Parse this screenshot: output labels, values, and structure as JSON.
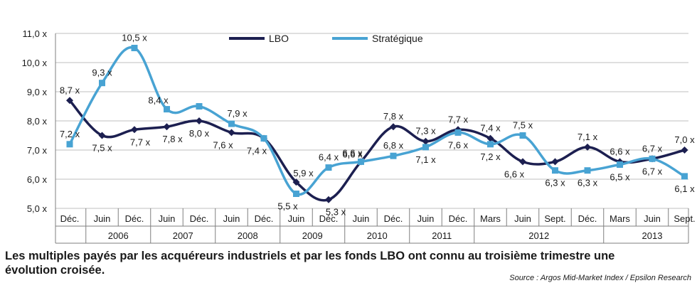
{
  "chart_data": {
    "type": "line",
    "x": [
      "Déc.",
      "Juin",
      "Déc.",
      "Juin",
      "Déc.",
      "Juin",
      "Déc.",
      "Juin",
      "Déc.",
      "Juin",
      "Déc.",
      "Juin",
      "Déc.",
      "Mars",
      "Juin",
      "Sept.",
      "Déc.",
      "Mars",
      "Juin",
      "Sept."
    ],
    "years": [
      {
        "label": "2006",
        "from": 1,
        "to": 2
      },
      {
        "label": "2007",
        "from": 3,
        "to": 4
      },
      {
        "label": "2008",
        "from": 5,
        "to": 6
      },
      {
        "label": "2009",
        "from": 7,
        "to": 8
      },
      {
        "label": "2010",
        "from": 9,
        "to": 10
      },
      {
        "label": "2011",
        "from": 11,
        "to": 12
      },
      {
        "label": "2012",
        "from": 13,
        "to": 16
      },
      {
        "label": "2013",
        "from": 17,
        "to": 19
      }
    ],
    "series": [
      {
        "name": "LBO",
        "color": "#1c1f50",
        "values": [
          8.7,
          7.5,
          7.7,
          7.8,
          8.0,
          7.6,
          7.4,
          5.9,
          5.3,
          6.6,
          7.8,
          7.3,
          7.7,
          7.4,
          6.6,
          6.6,
          7.1,
          6.6,
          6.7,
          7.0
        ],
        "labels": [
          "8,7 x",
          "7,5 x",
          "7,7 x",
          "7,8 x",
          "8,0 x",
          "7,6 x",
          "7,4 x",
          "5,9 x",
          "5,3 x",
          "6,6 x",
          "7,8 x",
          "7,3 x",
          "7,7 x",
          "7,4 x",
          "6,6 x",
          "",
          "7,1 x",
          "6,6 x",
          "6,7 x",
          "7,0 x"
        ]
      },
      {
        "name": "Stratégique",
        "color": "#48a3d3",
        "values": [
          7.2,
          9.3,
          10.5,
          8.4,
          8.5,
          7.9,
          7.4,
          5.5,
          6.4,
          6.6,
          6.8,
          7.1,
          7.6,
          7.2,
          7.5,
          6.3,
          6.3,
          6.5,
          6.7,
          6.1
        ],
        "labels": [
          "7,2 x",
          "9,3 x",
          "10,5 x",
          "8,4 x",
          "",
          "7,9 x",
          "",
          "5,5 x",
          "6,4 x",
          "6,6 x",
          "6,8 x",
          "7,1 x",
          "7,6 x",
          "7,2 x",
          "7,5 x",
          "6,3 x",
          "6,3 x",
          "6,5 x",
          "6,7 x",
          "6,1 x"
        ]
      }
    ],
    "yticks": [
      "5,0 x",
      "6,0 x",
      "7,0 x",
      "8,0 x",
      "9,0 x",
      "10,0 x",
      "11,0 x"
    ],
    "ylim": [
      5.0,
      11.0
    ],
    "grid": true,
    "legend": "top-center"
  },
  "caption": "Les multiples payés par les acquéreurs industriels et par les fonds LBO ont connu au troisième trimestre une évolution croisée.",
  "source": "Source : Argos Mid-Market Index / Epsilon Research"
}
